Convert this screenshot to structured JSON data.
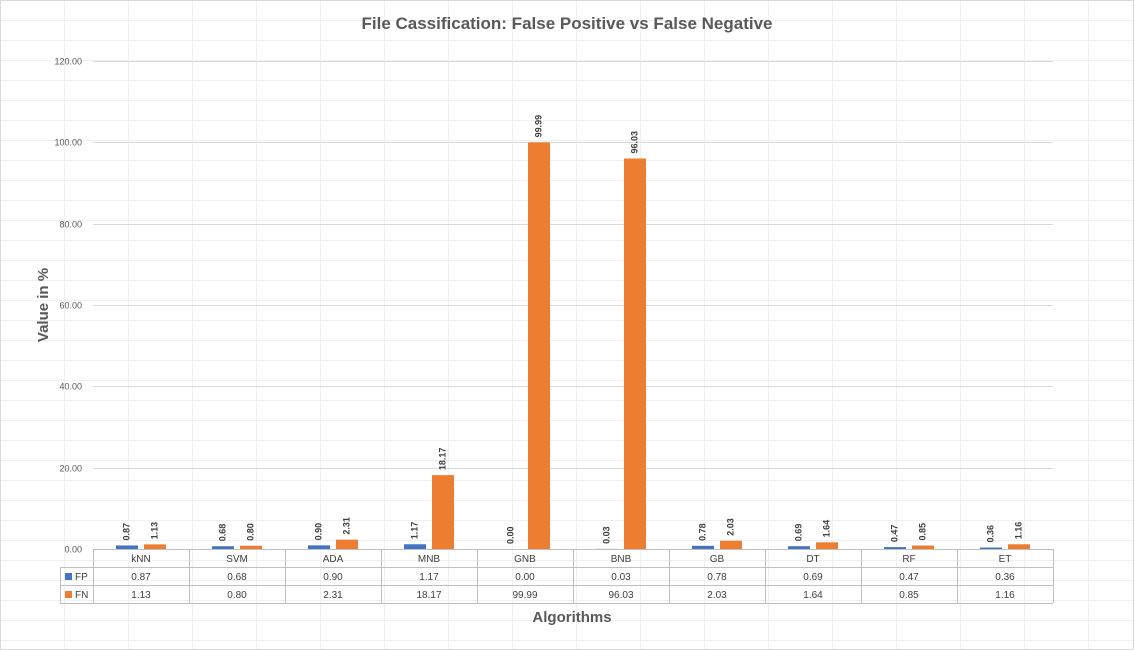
{
  "chart_data": {
    "type": "bar",
    "title": "File Cassification: False Positive vs False Negative",
    "xlabel": "Algorithms",
    "ylabel": "Value in %",
    "ylim": [
      0,
      120
    ],
    "yticks": [
      "0.00",
      "20.00",
      "40.00",
      "60.00",
      "80.00",
      "100.00",
      "120.00"
    ],
    "grid": true,
    "legend": "data-table-left",
    "categories": [
      "kNN",
      "SVM",
      "ADA",
      "MNB",
      "GNB",
      "BNB",
      "GB",
      "DT",
      "RF",
      "ET"
    ],
    "series": [
      {
        "name": "FP",
        "color": "#4472C4",
        "values": [
          0.87,
          0.68,
          0.9,
          1.17,
          0.0,
          0.03,
          0.78,
          0.69,
          0.47,
          0.36
        ],
        "labels": [
          "0.87",
          "0.68",
          "0.90",
          "1.17",
          "0.00",
          "0.03",
          "0.78",
          "0.69",
          "0.47",
          "0.36"
        ]
      },
      {
        "name": "FN",
        "color": "#ED7D31",
        "values": [
          1.13,
          0.8,
          2.31,
          18.17,
          99.99,
          96.03,
          2.03,
          1.64,
          0.85,
          1.16
        ],
        "labels": [
          "1.13",
          "0.80",
          "2.31",
          "18.17",
          "99.99",
          "96.03",
          "2.03",
          "1.64",
          "0.85",
          "1.16"
        ]
      }
    ]
  }
}
